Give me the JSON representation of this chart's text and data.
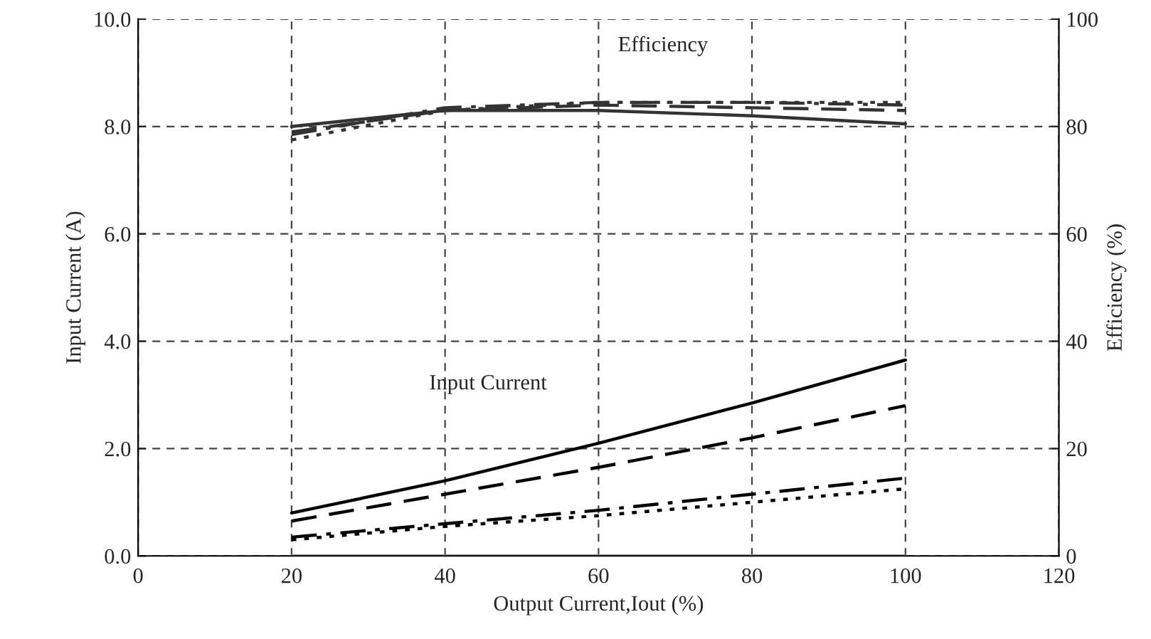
{
  "chart_data": {
    "type": "line",
    "xlabel": "Output Current,Iout (%)",
    "ylabel": "Input Current (A)",
    "y2label": "Efficiency (%)",
    "x": [
      20,
      40,
      60,
      80,
      100
    ],
    "series": [
      {
        "color": "#000000",
        "line_style": "solid",
        "values": [
          0.8,
          1.4,
          2.1,
          2.85,
          3.65
        ]
      },
      {
        "color": "#000000",
        "line_style": "dashed",
        "values": [
          0.65,
          1.15,
          1.65,
          2.2,
          2.8
        ]
      },
      {
        "color": "#000000",
        "line_style": "dashdot",
        "values": [
          0.35,
          0.6,
          0.85,
          1.15,
          1.45
        ]
      },
      {
        "color": "#000000",
        "line_style": "dotted",
        "values": [
          0.3,
          0.55,
          0.75,
          1.0,
          1.25
        ]
      },
      {
        "color": "#999999",
        "line_style": "solid",
        "values": [
          0,
          0,
          0,
          0,
          0
        ]
      },
      {
        "color": "#333333",
        "line_style": "solid",
        "axis": "y2",
        "values": [
          80,
          83,
          83,
          82,
          80.5
        ]
      },
      {
        "color": "#333333",
        "line_style": "dashed",
        "axis": "y2",
        "values": [
          79,
          83,
          84,
          83.5,
          83
        ]
      },
      {
        "color": "#333333",
        "line_style": "dashdot",
        "axis": "y2",
        "values": [
          78.5,
          83.5,
          84.5,
          84.5,
          84
        ]
      },
      {
        "color": "#333333",
        "line_style": "dotted",
        "axis": "y2",
        "values": [
          77.5,
          83,
          84.5,
          84.5,
          84.5
        ]
      }
    ],
    "xlim": [
      0,
      120
    ],
    "xticks": [
      0,
      20,
      40,
      60,
      80,
      100,
      120
    ],
    "ylim": [
      0,
      10
    ],
    "yticks": [
      {
        "value": 0,
        "label": "0.0"
      },
      {
        "value": 2,
        "label": "2.0"
      },
      {
        "value": 4,
        "label": "4.0"
      },
      {
        "value": 6,
        "label": "6.0"
      },
      {
        "value": 8,
        "label": "8.0"
      },
      {
        "value": 10,
        "label": "10.0"
      }
    ],
    "y2lim": [
      0,
      100
    ],
    "y2ticks": [
      0,
      20,
      40,
      60,
      80,
      100
    ],
    "annotations": [
      "Efficiency",
      "Input Current"
    ],
    "grid": true,
    "legend": false,
    "marker": "none"
  }
}
